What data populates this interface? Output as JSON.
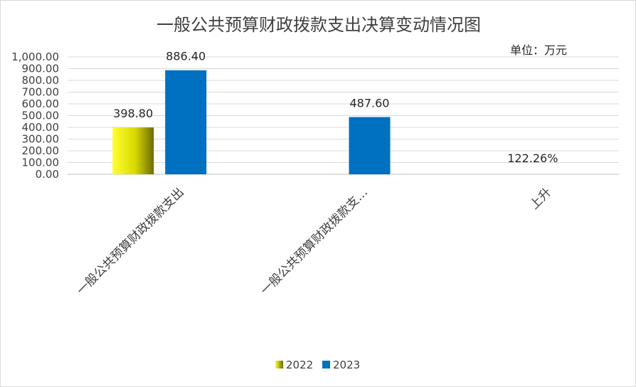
{
  "chart_data": {
    "type": "bar",
    "title": "一般公共预算财政拨款支出决算变动情况图",
    "unit": "单位：万元",
    "categories": [
      "一般公共预算财政拨款支出",
      "一般公共预算财政拨款支…",
      "上升"
    ],
    "series": [
      {
        "name": "2022",
        "values": [
          398.8,
          null,
          null
        ],
        "labels": [
          "398.80",
          "",
          ""
        ]
      },
      {
        "name": "2023",
        "values": [
          886.4,
          487.6,
          null
        ],
        "labels": [
          "886.40",
          "487.60",
          ""
        ]
      }
    ],
    "extra_labels": [
      {
        "category_index": 2,
        "text": "122.26%"
      }
    ],
    "ylim": [
      0,
      1000
    ],
    "yticks": [
      "0.00",
      "100.00",
      "200.00",
      "300.00",
      "400.00",
      "500.00",
      "600.00",
      "700.00",
      "800.00",
      "900.00",
      "1,000.00"
    ],
    "grid": true,
    "legend_position": "bottom",
    "colors": {
      "2022": "#e6e600",
      "2023": "#0070c0",
      "grid": "#d9d9d9",
      "axis": "#bfbfbf"
    }
  }
}
